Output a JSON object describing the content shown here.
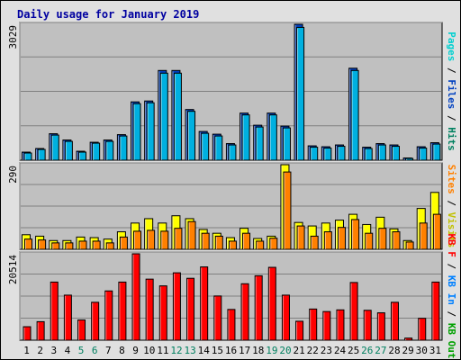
{
  "title": "Daily usage for January 2019",
  "colors": {
    "hits": "#00b0e0",
    "files": "#0040c0",
    "pages": "#00d0d0",
    "visits": "#ffff00",
    "sites": "#ff8000",
    "kbytes": "#ff0000",
    "kb_in": "#0080ff",
    "kb_out": "#00a000",
    "weekend_label": "#008060",
    "plot_bg": "#c0c0c0",
    "grid": "#808080",
    "title": "#0000a0"
  },
  "chart_data": [
    {
      "type": "bar",
      "panel": "top",
      "ymax_label": "3029",
      "ylim": [
        0,
        3029
      ],
      "legend": [
        {
          "text": "Pages",
          "color": "#00d0d0"
        },
        {
          "text": " / ",
          "color": "#000000"
        },
        {
          "text": "Files",
          "color": "#0040c0"
        },
        {
          "text": " / ",
          "color": "#000000"
        },
        {
          "text": "Hits",
          "color": "#008060"
        }
      ],
      "categories": [
        "1",
        "2",
        "3",
        "4",
        "5",
        "6",
        "7",
        "8",
        "9",
        "10",
        "11",
        "12",
        "13",
        "14",
        "15",
        "16",
        "17",
        "18",
        "19",
        "20",
        "21",
        "22",
        "23",
        "24",
        "25",
        "26",
        "27",
        "28",
        "29",
        "30",
        "31"
      ],
      "series": [
        {
          "name": "Hits",
          "values": [
            180,
            260,
            590,
            450,
            200,
            400,
            450,
            570,
            1300,
            1320,
            2000,
            2000,
            1130,
            640,
            580,
            370,
            1050,
            780,
            1050,
            760,
            3029,
            320,
            300,
            340,
            2050,
            290,
            370,
            340,
            50,
            300,
            390
          ]
        },
        {
          "name": "Files",
          "values": [
            160,
            240,
            560,
            420,
            180,
            380,
            420,
            540,
            1260,
            1280,
            1940,
            1940,
            1090,
            600,
            540,
            340,
            1010,
            740,
            1010,
            720,
            2960,
            290,
            270,
            310,
            2000,
            260,
            340,
            310,
            40,
            270,
            360
          ]
        }
      ]
    },
    {
      "type": "bar",
      "panel": "middle",
      "ymax_label": "290",
      "ylim": [
        0,
        290
      ],
      "legend": [
        {
          "text": "Sites",
          "color": "#ff8000"
        },
        {
          "text": " / ",
          "color": "#000000"
        },
        {
          "text": "Visits",
          "color": "#c0c000"
        }
      ],
      "categories": [
        "1",
        "2",
        "3",
        "4",
        "5",
        "6",
        "7",
        "8",
        "9",
        "10",
        "11",
        "12",
        "13",
        "14",
        "15",
        "16",
        "17",
        "18",
        "19",
        "20",
        "21",
        "22",
        "23",
        "24",
        "25",
        "26",
        "27",
        "28",
        "29",
        "30",
        "31"
      ],
      "series": [
        {
          "name": "Visits",
          "values": [
            50,
            45,
            30,
            30,
            42,
            40,
            35,
            60,
            90,
            105,
            90,
            115,
            105,
            68,
            55,
            40,
            72,
            37,
            45,
            290,
            92,
            80,
            90,
            100,
            120,
            85,
            110,
            70,
            30,
            140,
            195
          ]
        },
        {
          "name": "Sites",
          "values": [
            35,
            32,
            22,
            22,
            28,
            28,
            22,
            42,
            62,
            65,
            62,
            72,
            95,
            55,
            45,
            28,
            55,
            28,
            38,
            265,
            80,
            45,
            60,
            75,
            102,
            55,
            72,
            60,
            25,
            90,
            120
          ]
        }
      ]
    },
    {
      "type": "bar",
      "panel": "bottom",
      "ymax_label": "20514",
      "ylim": [
        0,
        20514
      ],
      "legend": [
        {
          "text": "KB F",
          "color": "#ff0000"
        },
        {
          "text": " / ",
          "color": "#000000"
        },
        {
          "text": "KB In",
          "color": "#0080ff"
        },
        {
          "text": " / ",
          "color": "#000000"
        },
        {
          "text": "KB Out",
          "color": "#00a000"
        }
      ],
      "categories": [
        "1",
        "2",
        "3",
        "4",
        "5",
        "6",
        "7",
        "8",
        "9",
        "10",
        "11",
        "12",
        "13",
        "14",
        "15",
        "16",
        "17",
        "18",
        "19",
        "20",
        "21",
        "22",
        "23",
        "24",
        "25",
        "26",
        "27",
        "28",
        "29",
        "30",
        "31"
      ],
      "series": [
        {
          "name": "KB F",
          "values": [
            3200,
            4400,
            13800,
            10700,
            4800,
            9000,
            11700,
            13800,
            20514,
            14500,
            12900,
            16000,
            14700,
            17400,
            10500,
            7300,
            13400,
            15300,
            17300,
            10700,
            4500,
            7400,
            6800,
            7200,
            13700,
            7100,
            6500,
            9000,
            500,
            5200,
            13800
          ]
        }
      ]
    }
  ],
  "x_labels": [
    {
      "text": "1",
      "weekend": false
    },
    {
      "text": "2",
      "weekend": false
    },
    {
      "text": "3",
      "weekend": false
    },
    {
      "text": "4",
      "weekend": false
    },
    {
      "text": "5",
      "weekend": true
    },
    {
      "text": "6",
      "weekend": true
    },
    {
      "text": "7",
      "weekend": false
    },
    {
      "text": "8",
      "weekend": false
    },
    {
      "text": "9",
      "weekend": false
    },
    {
      "text": "10",
      "weekend": false
    },
    {
      "text": "11",
      "weekend": false
    },
    {
      "text": "12",
      "weekend": true
    },
    {
      "text": "13",
      "weekend": true
    },
    {
      "text": "14",
      "weekend": false
    },
    {
      "text": "15",
      "weekend": false
    },
    {
      "text": "16",
      "weekend": false
    },
    {
      "text": "17",
      "weekend": false
    },
    {
      "text": "18",
      "weekend": false
    },
    {
      "text": "19",
      "weekend": true
    },
    {
      "text": "20",
      "weekend": true
    },
    {
      "text": "21",
      "weekend": false
    },
    {
      "text": "22",
      "weekend": false
    },
    {
      "text": "23",
      "weekend": false
    },
    {
      "text": "24",
      "weekend": false
    },
    {
      "text": "25",
      "weekend": false
    },
    {
      "text": "26",
      "weekend": true
    },
    {
      "text": "27",
      "weekend": true
    },
    {
      "text": "28",
      "weekend": false
    },
    {
      "text": "29",
      "weekend": false
    },
    {
      "text": "30",
      "weekend": false
    },
    {
      "text": "31",
      "weekend": false
    }
  ]
}
